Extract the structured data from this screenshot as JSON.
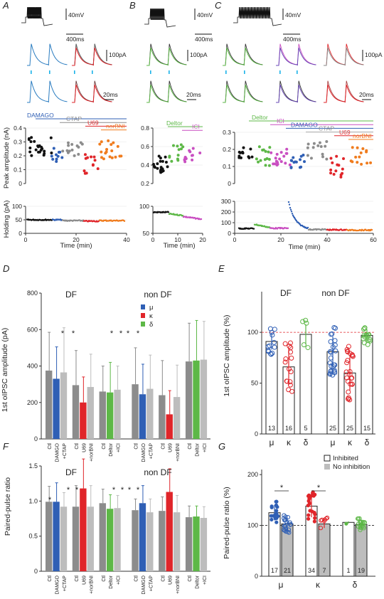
{
  "colors": {
    "ctl": "#111111",
    "mu": "#2f5fb5",
    "kappa": "#e0252a",
    "delta": "#5db847",
    "orange": "#f07c1e",
    "magenta": "#c94fc1",
    "gray": "#8c8c8c",
    "lightgray": "#bdbdbd",
    "cyan": "#1ab2e8",
    "trace": "#2a7cc0"
  },
  "panel_labels": {
    "a": "A",
    "b": "B",
    "c": "C",
    "d": "D",
    "e": "E",
    "f": "F",
    "g": "G"
  },
  "scale_bars": {
    "v": "40mV",
    "t": "400ms",
    "i": "100pA",
    "tt": "20ms"
  },
  "panel_a": {
    "bars": [
      {
        "label": "DAMAGO",
        "color": "#2f5fb5"
      },
      {
        "label": "CTAP",
        "color": "#8c8c8c"
      },
      {
        "label": "U69",
        "color": "#e0252a"
      },
      {
        "label": "norBNI",
        "color": "#f07c1e"
      }
    ],
    "ylabel_peak": "Peak amplitude (nA)",
    "ylabel_hold": "Holding (pA)",
    "xlabel": "Time (min)",
    "peak_ticks": [
      "0",
      "0.1",
      "0.2",
      "0.3",
      "0.4"
    ],
    "hold_ticks": [
      "0",
      "50",
      "100"
    ],
    "x_ticks": [
      "0",
      "20",
      "40"
    ]
  },
  "panel_b": {
    "bars": [
      {
        "label": "Deltor",
        "color": "#5db847"
      },
      {
        "label": "ICI",
        "color": "#c94fc1"
      }
    ],
    "peak_ticks": [
      "0.2",
      "0.4",
      "0.6",
      "0.8"
    ],
    "hold_ticks": [
      "50",
      "100"
    ],
    "x_ticks": [
      "0",
      "10",
      "20"
    ],
    "xlabel": "Time (min)"
  },
  "panel_c": {
    "bars": [
      {
        "label": "Deltor",
        "color": "#5db847"
      },
      {
        "label": "ICI",
        "color": "#c94fc1"
      },
      {
        "label": "DAMAGO",
        "color": "#2f5fb5"
      },
      {
        "label": "CTAP",
        "color": "#8c8c8c"
      },
      {
        "label": "U69",
        "color": "#e0252a"
      },
      {
        "label": "norBNI",
        "color": "#f07c1e"
      }
    ],
    "peak_ticks": [
      "0",
      "0.1",
      "0.2",
      "0.3"
    ],
    "hold_ticks": [
      "0",
      "100",
      "200",
      "300"
    ],
    "x_ticks": [
      "0",
      "20",
      "40",
      "60"
    ],
    "xlabel": "Time (min)"
  },
  "chart_data": [
    {
      "panel": "D",
      "type": "bar",
      "title_left": "DF",
      "title_right": "non DF",
      "ylabel": "1st oIPSC amplitude (pA)",
      "ylim": [
        0,
        800
      ],
      "yticks": [
        "0",
        "200",
        "400",
        "600",
        "800"
      ],
      "legend": [
        {
          "symbol": "μ",
          "color": "#2f5fb5"
        },
        {
          "symbol": "κ",
          "color": "#e0252a"
        },
        {
          "symbol": "δ",
          "color": "#5db847"
        }
      ],
      "categories": [
        "Ctl",
        "DAMGO",
        "+CTAP",
        "Ctl",
        "U69",
        "+norBNI",
        "Ctl",
        "Deltor",
        "+ICI",
        "Ctl",
        "DAMGO",
        "+CTAP",
        "Ctl",
        "U69",
        "+norBNI",
        "Ctl",
        "Deltor",
        "+ICI"
      ],
      "values": [
        375,
        330,
        365,
        295,
        200,
        285,
        260,
        255,
        270,
        300,
        245,
        275,
        240,
        135,
        230,
        425,
        430,
        435
      ],
      "errors": [
        210,
        175,
        245,
        190,
        140,
        180,
        140,
        165,
        130,
        200,
        165,
        185,
        190,
        130,
        175,
        210,
        220,
        210
      ],
      "bar_colors": [
        "#8c8c8c",
        "#2f5fb5",
        "#bdbdbd",
        "#8c8c8c",
        "#e0252a",
        "#bdbdbd",
        "#8c8c8c",
        "#5db847",
        "#bdbdbd",
        "#8c8c8c",
        "#2f5fb5",
        "#bdbdbd",
        "#8c8c8c",
        "#e0252a",
        "#bdbdbd",
        "#8c8c8c",
        "#5db847",
        "#bdbdbd"
      ]
    },
    {
      "panel": "E",
      "type": "bar",
      "title_left": "DF",
      "title_right": "non DF",
      "ylabel": "1st oIPSC amplitude (%)",
      "ylim": [
        0,
        140
      ],
      "yticks": [
        "0",
        "50",
        "100"
      ],
      "categories": [
        "μ",
        "κ",
        "δ",
        "μ",
        "κ",
        "δ"
      ],
      "values": [
        91,
        66,
        98,
        81,
        60,
        97
      ],
      "errors": [
        8,
        18,
        10,
        15,
        17,
        6
      ],
      "n": [
        "13",
        "16",
        "5",
        "25",
        "25",
        "15"
      ],
      "point_colors": [
        "#2f5fb5",
        "#e0252a",
        "#5db847",
        "#2f5fb5",
        "#e0252a",
        "#5db847"
      ]
    },
    {
      "panel": "F",
      "type": "bar",
      "title_left": "DF",
      "title_right": "non DF",
      "ylabel": "Paired-pulse ratio",
      "ylim": [
        0,
        1.5
      ],
      "yticks": [
        "0",
        "0.5",
        "1.0",
        "1.5"
      ],
      "categories": [
        "Ctl",
        "DAMGO",
        "+CTAP",
        "Ctl",
        "U69",
        "+norBNI",
        "Ctl",
        "Deltor",
        "+ICI",
        "Ctl",
        "DAMGO",
        "+CTAP",
        "Ctl",
        "U69",
        "+norBNI",
        "Ctl",
        "Deltor",
        "+ICI"
      ],
      "values": [
        0.99,
        0.99,
        0.92,
        0.92,
        1.18,
        0.92,
        0.97,
        0.89,
        0.9,
        0.87,
        0.97,
        0.84,
        0.86,
        1.13,
        0.84,
        0.77,
        0.78,
        0.76
      ],
      "errors": [
        0.22,
        0.27,
        0.2,
        0.3,
        0.42,
        0.3,
        0.2,
        0.2,
        0.18,
        0.16,
        0.25,
        0.19,
        0.2,
        0.33,
        0.24,
        0.16,
        0.15,
        0.16
      ],
      "bar_colors": [
        "#8c8c8c",
        "#2f5fb5",
        "#bdbdbd",
        "#8c8c8c",
        "#e0252a",
        "#bdbdbd",
        "#8c8c8c",
        "#5db847",
        "#bdbdbd",
        "#8c8c8c",
        "#2f5fb5",
        "#bdbdbd",
        "#8c8c8c",
        "#e0252a",
        "#bdbdbd",
        "#8c8c8c",
        "#5db847",
        "#bdbdbd"
      ]
    },
    {
      "panel": "G",
      "type": "bar",
      "ylabel": "Paired-pulse ratio (%)",
      "ylim": [
        0,
        210
      ],
      "yticks": [
        "0",
        "100",
        "200"
      ],
      "legend": [
        "Inhibited",
        "No inhibition"
      ],
      "groups": [
        "μ",
        "κ",
        "δ"
      ],
      "values_inhibited": [
        125,
        138,
        106
      ],
      "values_no": [
        103,
        103,
        102
      ],
      "errors_inhibited": [
        15,
        22,
        2
      ],
      "errors_no": [
        12,
        8,
        8
      ],
      "n": [
        "17",
        "21",
        "34",
        "7",
        "1",
        "19"
      ]
    }
  ]
}
